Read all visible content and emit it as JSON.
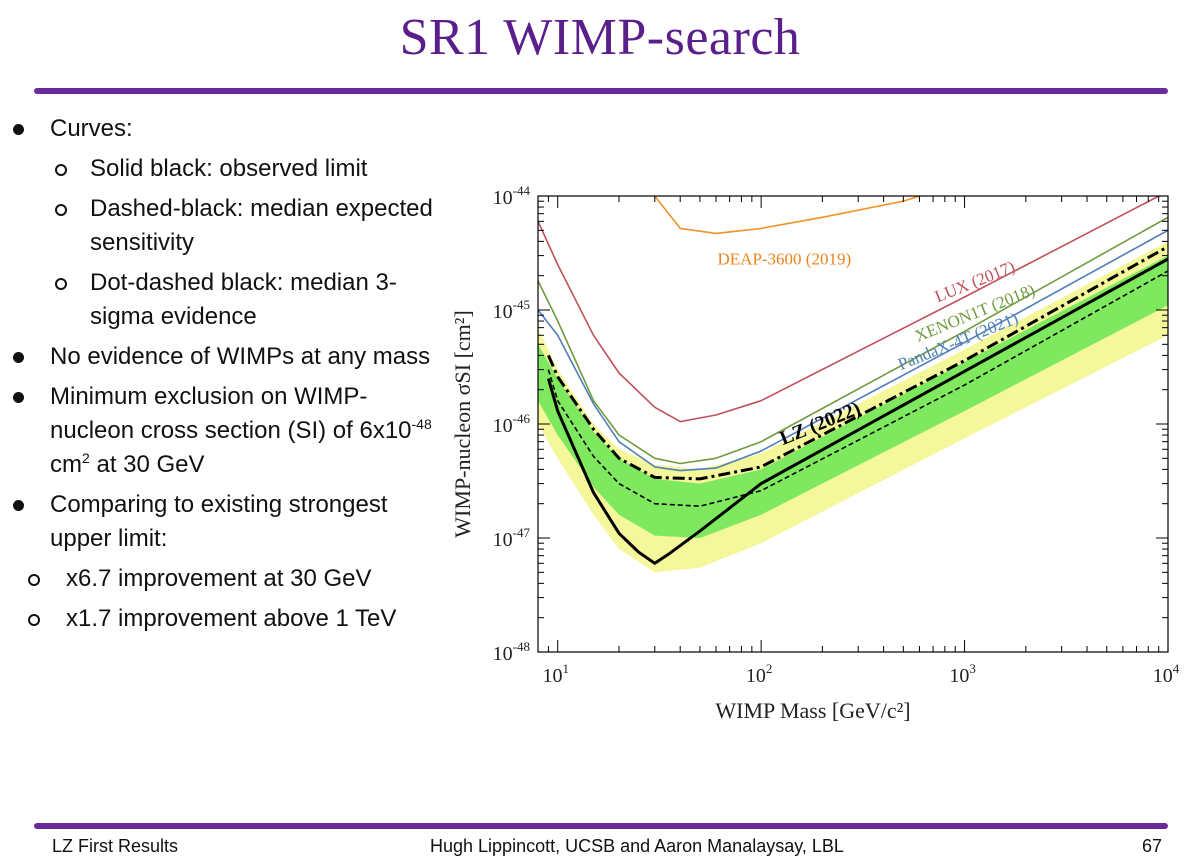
{
  "slide": {
    "title": "SR1 WIMP-search",
    "colors": {
      "title": "#5b1f8c",
      "rule": "#6a2a9a"
    }
  },
  "bullets": {
    "curves_label": "Curves:",
    "curves_items": [
      "Solid black: observed limit",
      "Dashed-black: median expected sensitivity",
      "Dot-dashed black: median 3-sigma evidence"
    ],
    "no_evidence": "No evidence of WIMPs at any mass",
    "min_exclusion_prefix": "Minimum exclusion on WIMP-nucleon cross section (SI) of 6x10",
    "min_exclusion_exp": "-48",
    "min_exclusion_unit": " cm",
    "min_exclusion_unit_exp": "2",
    "min_exclusion_suffix": " at 30 GeV",
    "comparing": "Comparing to existing strongest upper limit:",
    "comparing_items": [
      "x6.7 improvement at 30 GeV",
      "x1.7 improvement above 1 TeV"
    ]
  },
  "footer": {
    "left": "LZ First Results",
    "center": "Hugh Lippincott, UCSB and Aaron Manalaysay, LBL",
    "page": "67"
  },
  "chart_data": {
    "type": "line",
    "xscale": "log",
    "yscale": "log",
    "xlim": [
      8,
      10000
    ],
    "ylim": [
      1e-48,
      1e-44
    ],
    "xlabel": "WIMP Mass [GeV/c²]",
    "ylabel": "WIMP-nucleon σSI [cm²]",
    "x_ticks": [
      {
        "base": "10",
        "exp": "1"
      },
      {
        "base": "10",
        "exp": "2"
      },
      {
        "base": "10",
        "exp": "3"
      },
      {
        "base": "10",
        "exp": "4"
      }
    ],
    "y_ticks": [
      {
        "base": "10",
        "exp": "-48"
      },
      {
        "base": "10",
        "exp": "-47"
      },
      {
        "base": "10",
        "exp": "-46"
      },
      {
        "base": "10",
        "exp": "-45"
      },
      {
        "base": "10",
        "exp": "-44"
      }
    ],
    "bands": [
      {
        "name": "±2σ sensitivity",
        "color": "#f4f79a",
        "upper": [
          [
            8,
            7e-46
          ],
          [
            10,
            3e-46
          ],
          [
            15,
            1e-46
          ],
          [
            20,
            6e-47
          ],
          [
            30,
            4.4e-47
          ],
          [
            50,
            4e-47
          ],
          [
            100,
            5.5e-47
          ],
          [
            1000,
            4.5e-46
          ],
          [
            10000,
            4e-45
          ]
        ],
        "lower": [
          [
            8,
            1e-46
          ],
          [
            10,
            5e-47
          ],
          [
            15,
            1.6e-47
          ],
          [
            20,
            8e-48
          ],
          [
            30,
            5e-48
          ],
          [
            50,
            5.5e-48
          ],
          [
            100,
            9e-48
          ],
          [
            1000,
            7.5e-47
          ],
          [
            10000,
            6e-46
          ]
        ]
      },
      {
        "name": "±1σ sensitivity",
        "color": "#7ee85e",
        "upper": [
          [
            8,
            5e-46
          ],
          [
            10,
            2.5e-46
          ],
          [
            15,
            8.5e-47
          ],
          [
            20,
            5e-47
          ],
          [
            30,
            3.3e-47
          ],
          [
            50,
            3e-47
          ],
          [
            100,
            4e-47
          ],
          [
            1000,
            3.5e-46
          ],
          [
            10000,
            3e-45
          ]
        ],
        "lower": [
          [
            8,
            1.6e-46
          ],
          [
            10,
            8e-47
          ],
          [
            15,
            2.8e-47
          ],
          [
            20,
            1.6e-47
          ],
          [
            30,
            1.05e-47
          ],
          [
            50,
            1e-47
          ],
          [
            100,
            1.6e-47
          ],
          [
            1000,
            1.3e-46
          ],
          [
            10000,
            1.1e-45
          ]
        ]
      }
    ],
    "series": [
      {
        "name": "DEAP-3600 (2019)",
        "color": "#f0932a",
        "style": "solid",
        "points": [
          [
            30,
            1e-44
          ],
          [
            40,
            5.2e-45
          ],
          [
            60,
            4.7e-45
          ],
          [
            100,
            5.2e-45
          ],
          [
            200,
            6.5e-45
          ],
          [
            500,
            9e-45
          ],
          [
            600,
            1e-44
          ]
        ]
      },
      {
        "name": "LUX (2017)",
        "color": "#c0505a",
        "style": "solid",
        "points": [
          [
            8,
            6e-45
          ],
          [
            10,
            2.5e-45
          ],
          [
            15,
            6e-46
          ],
          [
            20,
            2.8e-46
          ],
          [
            30,
            1.4e-46
          ],
          [
            40,
            1.05e-46
          ],
          [
            60,
            1.2e-46
          ],
          [
            100,
            1.6e-46
          ],
          [
            1000,
            1.3e-45
          ],
          [
            10000,
            1.1e-44
          ]
        ]
      },
      {
        "name": "XENON1T (2018)",
        "color": "#6f9a3e",
        "style": "solid",
        "points": [
          [
            8,
            1.8e-45
          ],
          [
            10,
            8e-46
          ],
          [
            15,
            1.6e-46
          ],
          [
            20,
            8e-47
          ],
          [
            30,
            5e-47
          ],
          [
            40,
            4.5e-47
          ],
          [
            60,
            5e-47
          ],
          [
            100,
            7e-47
          ],
          [
            1000,
            6.5e-46
          ],
          [
            10000,
            6.5e-45
          ]
        ]
      },
      {
        "name": "PandaX-4T (2021)",
        "color": "#4f7fb8",
        "style": "solid",
        "points": [
          [
            8,
            1e-45
          ],
          [
            10,
            6e-46
          ],
          [
            15,
            1.5e-46
          ],
          [
            20,
            7e-47
          ],
          [
            30,
            4.2e-47
          ],
          [
            40,
            3.9e-47
          ],
          [
            60,
            4.1e-47
          ],
          [
            100,
            5.8e-47
          ],
          [
            1000,
            5.2e-46
          ],
          [
            10000,
            5e-45
          ]
        ]
      },
      {
        "name": "Median 3σ evidence",
        "color": "#000000",
        "style": "dashdot",
        "points": [
          [
            9,
            4e-46
          ],
          [
            10,
            2.6e-46
          ],
          [
            15,
            9e-47
          ],
          [
            20,
            5e-47
          ],
          [
            30,
            3.4e-47
          ],
          [
            50,
            3.3e-47
          ],
          [
            100,
            4.2e-47
          ],
          [
            1000,
            3.6e-46
          ],
          [
            10000,
            3.6e-45
          ]
        ]
      },
      {
        "name": "Median expected sensitivity",
        "color": "#000000",
        "style": "dashed",
        "points": [
          [
            9,
            3e-46
          ],
          [
            10,
            1.6e-46
          ],
          [
            15,
            5.2e-47
          ],
          [
            20,
            3e-47
          ],
          [
            30,
            2e-47
          ],
          [
            50,
            1.9e-47
          ],
          [
            100,
            2.6e-47
          ],
          [
            1000,
            2.2e-46
          ],
          [
            10000,
            2.2e-45
          ]
        ]
      },
      {
        "name": "LZ (2022)",
        "color": "#000000",
        "style": "thick",
        "points": [
          [
            9,
            2.5e-46
          ],
          [
            10,
            1.3e-46
          ],
          [
            15,
            2.5e-47
          ],
          [
            20,
            1.1e-47
          ],
          [
            25,
            7.5e-48
          ],
          [
            30,
            6e-48
          ],
          [
            35,
            7.2e-48
          ],
          [
            50,
            1.15e-47
          ],
          [
            100,
            3e-47
          ],
          [
            1000,
            2.9e-46
          ],
          [
            10000,
            2.8e-45
          ]
        ]
      }
    ],
    "labels": [
      {
        "text": "DEAP-3600 (2019)",
        "color": "#e8851f",
        "anchor_x": 130,
        "anchor_y": 2.5e-45,
        "rotate": 0
      },
      {
        "text": "LUX (2017)",
        "color": "#c0505a",
        "anchor_x": 1150,
        "anchor_y": 1.6e-45,
        "rotate": -22
      },
      {
        "text": "XENON1T (2018)",
        "color": "#6f9a3e",
        "anchor_x": 1150,
        "anchor_y": 8.5e-46,
        "rotate": -22
      },
      {
        "text": "PandaX-4T (2021)",
        "color": "#4f7fb8",
        "anchor_x": 950,
        "anchor_y": 4.8e-46,
        "rotate": -22
      },
      {
        "text": "LZ (2022)",
        "color": "#000000",
        "anchor_x": 200,
        "anchor_y": 9e-47,
        "rotate": -22
      }
    ]
  }
}
